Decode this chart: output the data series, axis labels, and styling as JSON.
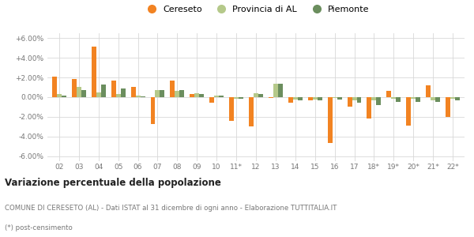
{
  "categories": [
    "02",
    "03",
    "04",
    "05",
    "06",
    "07",
    "08",
    "09",
    "10",
    "11*",
    "12",
    "13",
    "14",
    "15",
    "16",
    "17",
    "18*",
    "19*",
    "20*",
    "21*",
    "22*"
  ],
  "cereseto": [
    2.05,
    1.85,
    5.15,
    1.65,
    1.05,
    -2.75,
    1.65,
    0.35,
    -0.55,
    -2.4,
    -2.95,
    -0.1,
    -0.55,
    -0.35,
    -4.65,
    -1.0,
    -2.2,
    0.65,
    -2.85,
    1.2,
    -2.0
  ],
  "provincia_al": [
    0.35,
    1.05,
    0.5,
    0.35,
    0.2,
    0.75,
    0.65,
    0.4,
    0.15,
    -0.15,
    0.4,
    1.4,
    -0.25,
    -0.25,
    -0.1,
    -0.35,
    -0.35,
    -0.15,
    -0.2,
    -0.35,
    -0.2
  ],
  "piemonte": [
    0.15,
    0.75,
    1.3,
    0.85,
    0.1,
    0.75,
    0.7,
    0.3,
    0.2,
    -0.2,
    0.3,
    1.35,
    -0.35,
    -0.35,
    -0.25,
    -0.55,
    -0.8,
    -0.5,
    -0.5,
    -0.5,
    -0.3
  ],
  "cereseto_color": "#f28322",
  "provincia_color": "#b5c98a",
  "piemonte_color": "#6b8e5e",
  "bg_color": "#ffffff",
  "grid_color": "#d8d8d8",
  "title": "Variazione percentuale della popolazione",
  "subtitle": "COMUNE DI CERESETO (AL) - Dati ISTAT al 31 dicembre di ogni anno - Elaborazione TUTTITALIA.IT",
  "footnote": "(*) post-censimento",
  "ylim": [
    -6.5,
    6.5
  ],
  "yticks": [
    -6.0,
    -4.0,
    -2.0,
    0.0,
    2.0,
    4.0,
    6.0
  ]
}
